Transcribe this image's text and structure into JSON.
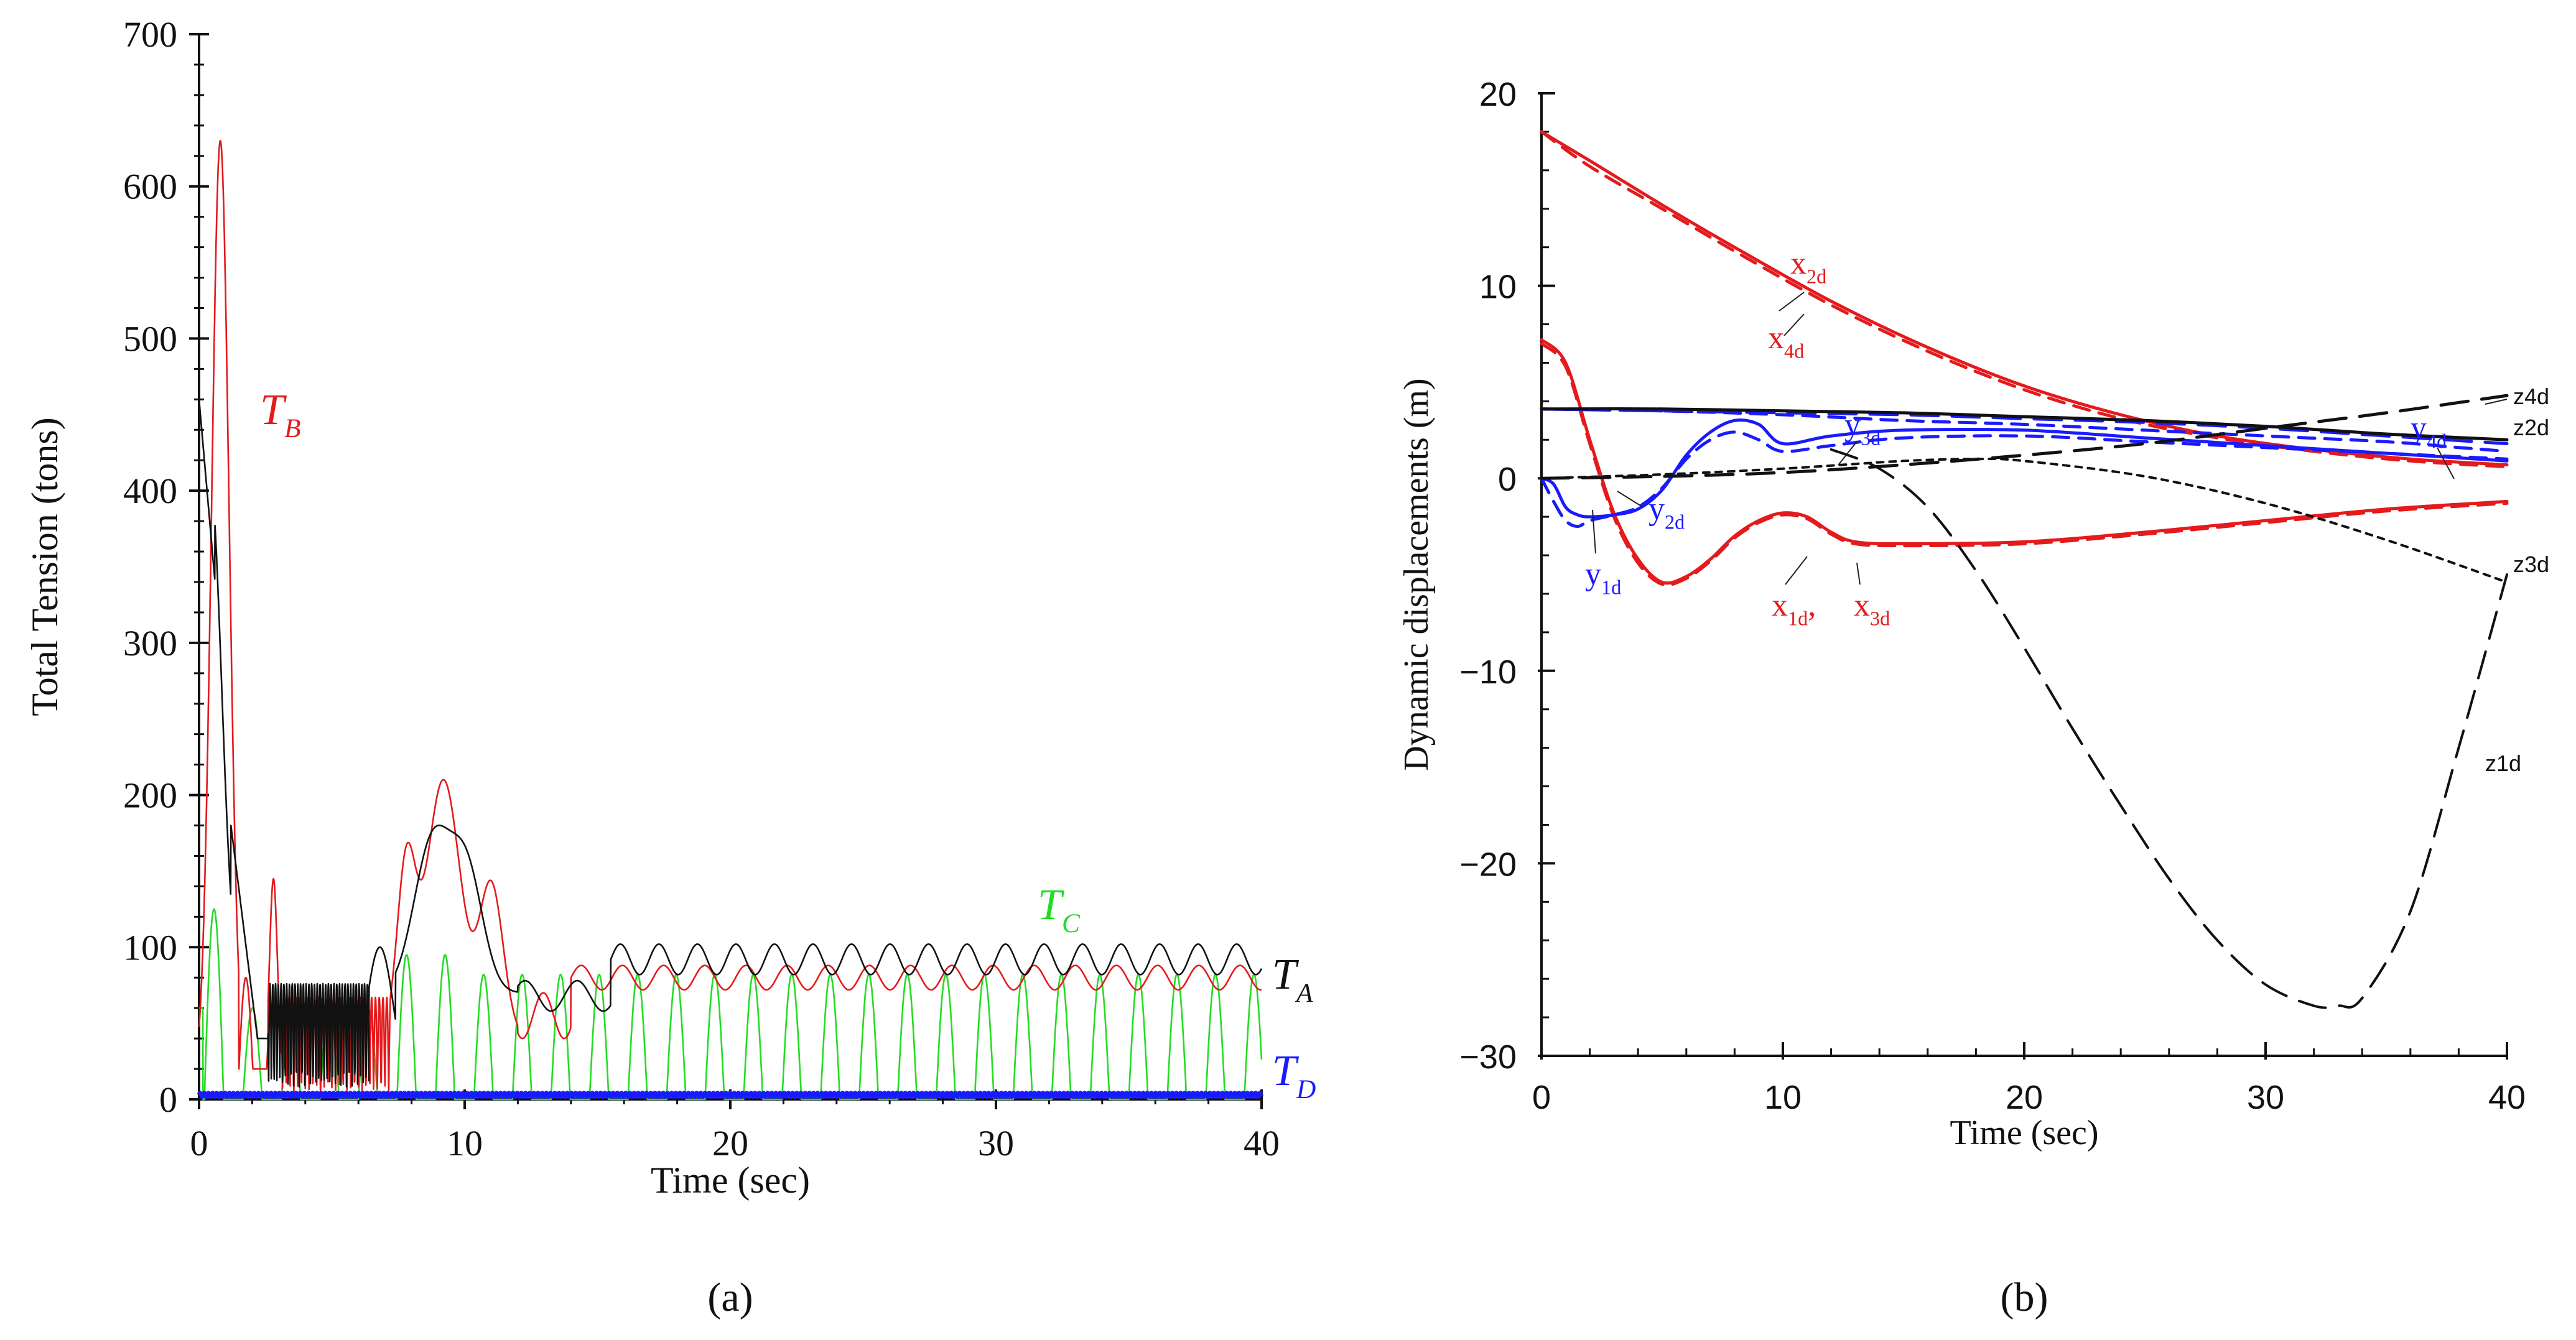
{
  "chart_data": [
    {
      "panel": "a",
      "type": "line",
      "caption": "(a)",
      "xlabel": "Time (sec)",
      "ylabel": "Total Tension (tons)",
      "xlim": [
        0,
        40
      ],
      "ylim": [
        0,
        700
      ],
      "xticks": [
        0,
        10,
        20,
        30,
        40
      ],
      "yticks": [
        0,
        100,
        200,
        300,
        400,
        500,
        600,
        700
      ],
      "grid": false,
      "series": [
        {
          "name": "T_A",
          "label_main": "T",
          "label_sub": "A",
          "color": "#111111",
          "description": "black mooring tension: initial spike ~460 then settles oscillating 70-100"
        },
        {
          "name": "T_B",
          "label_main": "T",
          "label_sub": "B",
          "color": "#e41a1c",
          "description": "red mooring tension: peak ~615 at t~0.8, then oscillating 70-90"
        },
        {
          "name": "T_C",
          "label_main": "T",
          "label_sub": "C",
          "color": "#22dd22",
          "description": "green tension: periodic pulses 0-~95 (period ~1.4 s)"
        },
        {
          "name": "T_D",
          "label_main": "T",
          "label_sub": "D",
          "color": "#1a1aff",
          "description": "blue tension: near zero (~3) throughout"
        }
      ]
    },
    {
      "panel": "b",
      "type": "line",
      "caption": "(b)",
      "xlabel": "Time (sec)",
      "ylabel": "Dynamic displacements (m)",
      "xlim": [
        0,
        40
      ],
      "ylim": [
        -30,
        20
      ],
      "xticks": [
        0,
        10,
        20,
        30,
        40
      ],
      "yticks": [
        -30,
        -20,
        -10,
        0,
        10,
        20
      ],
      "grid": false,
      "series": [
        {
          "name": "x2d",
          "color": "#e41a1c",
          "style": "solid",
          "x": [
            0,
            2,
            5,
            8,
            12,
            16,
            20,
            24,
            28,
            32,
            36,
            40
          ],
          "y": [
            18,
            16.5,
            14.2,
            12,
            9.2,
            6.8,
            4.8,
            3.3,
            2.2,
            1.5,
            1.0,
            0.7
          ]
        },
        {
          "name": "x4d",
          "color": "#e41a1c",
          "style": "dashed",
          "x": [
            0,
            2,
            5,
            8,
            12,
            16,
            20,
            24,
            28,
            32,
            36,
            40
          ],
          "y": [
            18,
            16.2,
            14,
            11.8,
            9.0,
            6.6,
            4.6,
            3.1,
            2.1,
            1.4,
            0.9,
            0.6
          ]
        },
        {
          "name": "x1d",
          "color": "#e41a1c",
          "style": "solid",
          "x": [
            0,
            1,
            2,
            3,
            4,
            5,
            6,
            7,
            8,
            9,
            10,
            11,
            12,
            13,
            15,
            20,
            25,
            30,
            35,
            40
          ],
          "y": [
            7.2,
            6,
            2,
            -1.8,
            -4.2,
            -5.4,
            -5.1,
            -4.2,
            -3,
            -2.2,
            -1.8,
            -2,
            -2.8,
            -3.3,
            -3.4,
            -3.3,
            -2.8,
            -2.2,
            -1.6,
            -1.2
          ]
        },
        {
          "name": "x3d",
          "color": "#e41a1c",
          "style": "dashed",
          "x": [
            0,
            1,
            2,
            3,
            4,
            5,
            6,
            7,
            8,
            9,
            10,
            11,
            12,
            13,
            15,
            20,
            25,
            30,
            35,
            40
          ],
          "y": [
            7,
            5.8,
            1.8,
            -2,
            -4.4,
            -5.5,
            -5.2,
            -4.3,
            -3.1,
            -2.3,
            -1.9,
            -2.1,
            -2.9,
            -3.4,
            -3.5,
            -3.4,
            -2.9,
            -2.3,
            -1.7,
            -1.3
          ]
        },
        {
          "name": "y1d",
          "color": "#1a1aff",
          "style": "dashed",
          "x": [
            0,
            0.5,
            1,
            1.5,
            2,
            3,
            4,
            5,
            6,
            7,
            8,
            9,
            10,
            12,
            15,
            20,
            25,
            30,
            35,
            40
          ],
          "y": [
            0,
            -1.2,
            -2.2,
            -2.5,
            -2.2,
            -1.9,
            -1.5,
            -0.5,
            1.0,
            2.0,
            2.4,
            2.0,
            1.4,
            1.7,
            2.1,
            2.2,
            1.9,
            1.6,
            1.3,
            1.0
          ]
        },
        {
          "name": "y2d",
          "color": "#1a1aff",
          "style": "solid",
          "x": [
            0,
            0.5,
            1,
            1.5,
            2,
            3,
            4,
            5,
            6,
            7,
            8,
            9,
            10,
            12,
            15,
            20,
            25,
            30,
            35,
            40
          ],
          "y": [
            0,
            -0.3,
            -1.5,
            -1.9,
            -2.0,
            -1.9,
            -1.6,
            -0.6,
            1.2,
            2.4,
            3.0,
            2.8,
            1.8,
            2.2,
            2.5,
            2.5,
            2.1,
            1.7,
            1.3,
            0.9
          ]
        },
        {
          "name": "y3d",
          "color": "#1a1aff",
          "style": "dashed",
          "x": [
            0,
            5,
            10,
            15,
            20,
            25,
            30,
            35,
            38,
            40
          ],
          "y": [
            3.6,
            3.5,
            3.3,
            3.0,
            2.8,
            2.5,
            2.2,
            1.9,
            1.6,
            1.4
          ]
        },
        {
          "name": "y4d",
          "color": "#1a1aff",
          "style": "longdash",
          "x": [
            0,
            5,
            10,
            15,
            20,
            25,
            30,
            35,
            40
          ],
          "y": [
            3.6,
            3.5,
            3.4,
            3.3,
            3.1,
            2.9,
            2.6,
            2.2,
            1.8
          ]
        },
        {
          "name": "z4d",
          "color": "#111111",
          "style": "longdash",
          "x": [
            0,
            5,
            10,
            15,
            20,
            25,
            30,
            35,
            40
          ],
          "y": [
            0,
            0.1,
            0.3,
            0.7,
            1.2,
            1.8,
            2.6,
            3.4,
            4.3
          ]
        },
        {
          "name": "z2d",
          "color": "#111111",
          "style": "solid",
          "x": [
            0,
            5,
            10,
            15,
            20,
            25,
            30,
            35,
            40
          ],
          "y": [
            3.6,
            3.6,
            3.5,
            3.4,
            3.2,
            3.0,
            2.7,
            2.3,
            2.0
          ]
        },
        {
          "name": "z3d",
          "color": "#111111",
          "style": "dotted",
          "x": [
            0,
            5,
            10,
            15,
            18,
            20,
            25,
            30,
            35,
            40
          ],
          "y": [
            0,
            0.2,
            0.5,
            0.9,
            1.0,
            0.9,
            0.1,
            -1.3,
            -3.2,
            -5.4
          ]
        },
        {
          "name": "z1d",
          "color": "#111111",
          "style": "longdash",
          "x": [
            12,
            14,
            16,
            18,
            20,
            22,
            24,
            26,
            28,
            30,
            32,
            33,
            34,
            36,
            38,
            40
          ],
          "y": [
            1.5,
            0.5,
            -1.5,
            -4.8,
            -8.8,
            -13,
            -17,
            -20.8,
            -24,
            -26.3,
            -27.4,
            -27.4,
            -27,
            -22.5,
            -14,
            -5.0
          ]
        }
      ],
      "annotations": [
        {
          "main": "x",
          "sub": "2d"
        },
        {
          "main": "x",
          "sub": "4d"
        },
        {
          "main": "y",
          "sub": "3d"
        },
        {
          "main": "y",
          "sub": "4d"
        },
        {
          "main": "y",
          "sub": "2d"
        },
        {
          "main": "y",
          "sub": "1d"
        },
        {
          "main": "x",
          "sub": "1d",
          "suffix": ","
        },
        {
          "main": "x",
          "sub": "3d"
        },
        {
          "main": "z4d"
        },
        {
          "main": "z2d"
        },
        {
          "main": "z3d"
        },
        {
          "main": "z1d"
        }
      ]
    }
  ]
}
